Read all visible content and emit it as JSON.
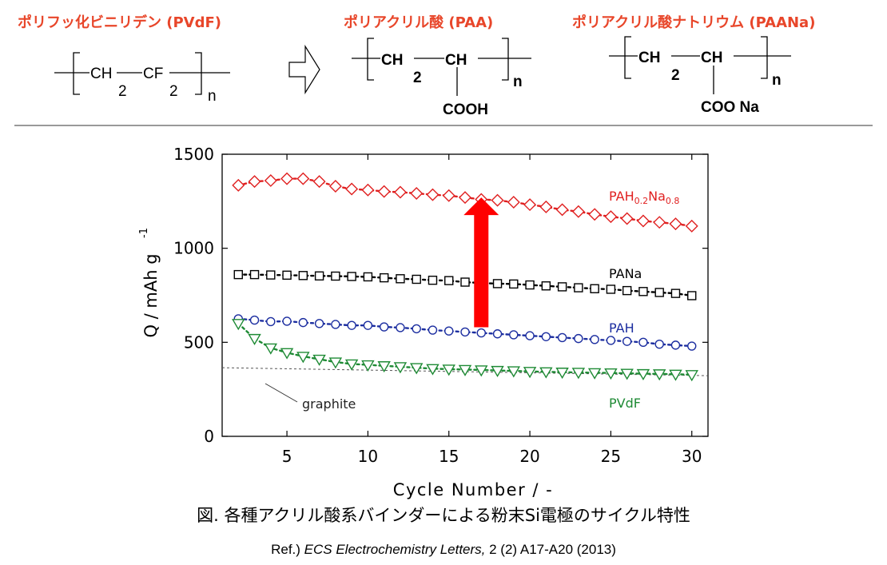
{
  "header": {
    "pvdf": {
      "title": "ポリフッ化ビニリデン (PVdF)",
      "unit1": "CH",
      "unit2": "CF",
      "sub": "2",
      "n": "n"
    },
    "paa": {
      "title": "ポリアクリル酸 (PAA)",
      "unit1": "CH",
      "unit2": "CH",
      "sub": "2",
      "n": "n",
      "side": "COOH"
    },
    "paana": {
      "title": "ポリアクリル酸ナトリウム (PAANa)",
      "unit1": "CH",
      "unit2": "CH",
      "sub": "2",
      "n": "n",
      "side": "COO Na"
    }
  },
  "caption": "図.  各種アクリル酸系バインダーによる粉末Si電極のサイクル特性",
  "reference": {
    "prefix": "Ref.) ",
    "journal": "ECS Electrochemistry Letters,",
    "rest": " 2 (2) A17-A20  (2013)"
  },
  "chart_data": {
    "type": "scatter",
    "xlabel": "Cycle Number / -",
    "ylabel": "Q / mAh g",
    "ylabel_sup": "-1",
    "xlim": [
      1,
      31
    ],
    "ylim": [
      0,
      1500
    ],
    "xticks": [
      5,
      10,
      15,
      20,
      25,
      30
    ],
    "yticks": [
      0,
      500,
      1000,
      1500
    ],
    "grid": false,
    "series": [
      {
        "name": "PAH0.2Na0.8",
        "name_main1": "PAH",
        "name_sub1": "0.2",
        "name_main2": "Na",
        "name_sub2": "0.8",
        "marker": "diamond",
        "color": "#e02020",
        "x": [
          2,
          3,
          4,
          5,
          6,
          7,
          8,
          9,
          10,
          11,
          12,
          13,
          14,
          15,
          16,
          17,
          18,
          19,
          20,
          21,
          22,
          23,
          24,
          25,
          26,
          27,
          28,
          29,
          30
        ],
        "y": [
          1335,
          1355,
          1360,
          1370,
          1370,
          1355,
          1330,
          1315,
          1310,
          1302,
          1298,
          1292,
          1285,
          1280,
          1270,
          1260,
          1255,
          1245,
          1232,
          1220,
          1205,
          1195,
          1180,
          1168,
          1158,
          1145,
          1138,
          1130,
          1118
        ]
      },
      {
        "name": "PANa",
        "marker": "square",
        "color": "#000000",
        "x": [
          2,
          3,
          4,
          5,
          6,
          7,
          8,
          9,
          10,
          11,
          12,
          13,
          14,
          15,
          16,
          17,
          18,
          19,
          20,
          21,
          22,
          23,
          24,
          25,
          26,
          27,
          28,
          29,
          30
        ],
        "y": [
          860,
          860,
          858,
          857,
          855,
          853,
          852,
          850,
          848,
          843,
          838,
          835,
          830,
          828,
          820,
          815,
          812,
          810,
          805,
          800,
          795,
          790,
          785,
          782,
          775,
          770,
          765,
          760,
          748
        ]
      },
      {
        "name": "PAH",
        "marker": "circle",
        "color": "#1c2ea0",
        "x": [
          2,
          3,
          4,
          5,
          6,
          7,
          8,
          9,
          10,
          11,
          12,
          13,
          14,
          15,
          16,
          17,
          18,
          19,
          20,
          21,
          22,
          23,
          24,
          25,
          26,
          27,
          28,
          29,
          30
        ],
        "y": [
          625,
          618,
          610,
          612,
          605,
          600,
          595,
          590,
          590,
          582,
          578,
          572,
          565,
          560,
          555,
          550,
          545,
          540,
          535,
          530,
          525,
          520,
          515,
          510,
          505,
          500,
          490,
          485,
          480
        ]
      },
      {
        "name": "PVdF",
        "marker": "triangle-down",
        "color": "#1e8a34",
        "x": [
          2,
          3,
          4,
          5,
          6,
          7,
          8,
          9,
          10,
          11,
          12,
          13,
          14,
          15,
          16,
          17,
          18,
          19,
          20,
          21,
          22,
          23,
          24,
          25,
          26,
          27,
          28,
          29,
          30
        ],
        "y": [
          600,
          520,
          470,
          445,
          425,
          410,
          395,
          385,
          380,
          375,
          370,
          365,
          360,
          357,
          355,
          353,
          350,
          348,
          345,
          343,
          341,
          340,
          338,
          337,
          335,
          333,
          332,
          330,
          328
        ]
      }
    ],
    "reference_line": {
      "label": "graphite",
      "y": 365,
      "color": "#555555"
    },
    "annotation": {
      "type": "arrow-up",
      "x": 17,
      "from": 580,
      "to": 1270,
      "color": "#ff0000"
    }
  }
}
